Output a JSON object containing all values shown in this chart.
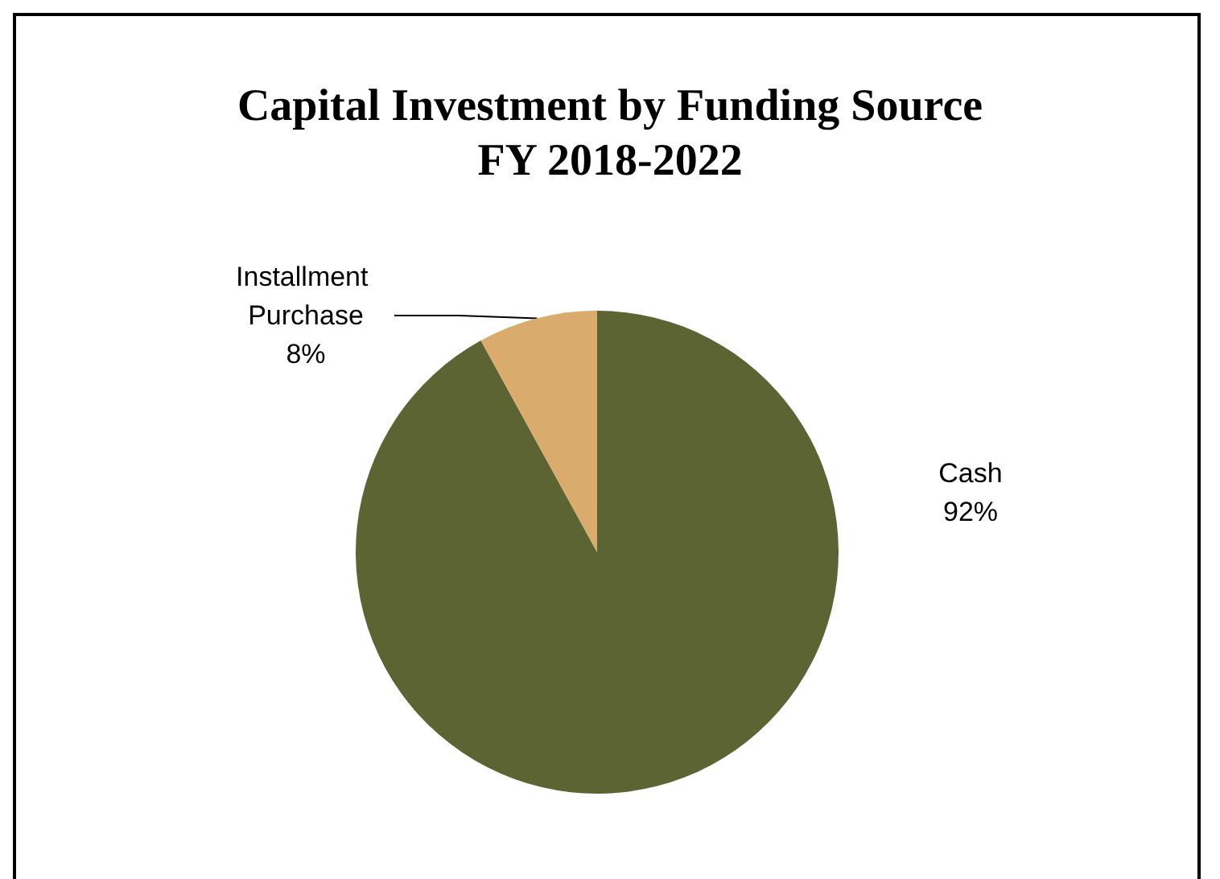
{
  "chart_data": {
    "type": "pie",
    "title": "Capital Investment by Funding Source\nFY 2018-2022",
    "categories": [
      "Cash",
      "Installment Purchase"
    ],
    "values": [
      92,
      8
    ],
    "value_labels": [
      "92%",
      "8%"
    ],
    "colors": [
      "#5c6434",
      "#d9ab6d"
    ],
    "legend": false
  }
}
